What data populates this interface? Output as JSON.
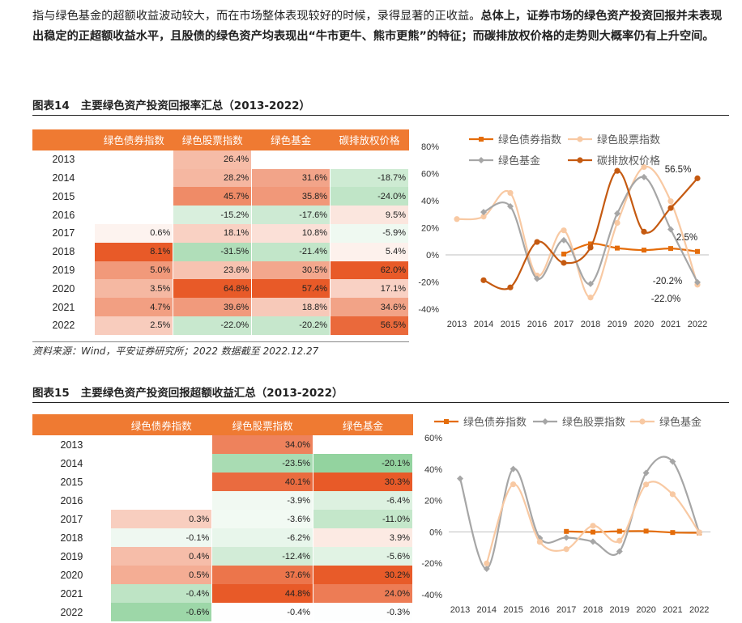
{
  "paragraph": {
    "normal": "指与绿色基金的超额收益波动较大，而在市场整体表现较好的时候，录得显著的正收益。",
    "bold": "总体上，证券市场的绿色资产投资回报并未表现出稳定的正超额收益水平，且股债的绿色资产均表现出“牛市更牛、熊市更熊”的特征；而碳排放权价格的走势则大概率仍有上升空间。"
  },
  "fig14": {
    "label": "图表14",
    "title": "主要绿色资产投资回报率汇总（2013-2022）",
    "headers": [
      "",
      "绿色债券指数",
      "绿色股票指数",
      "绿色基金",
      "碳排放权价格"
    ],
    "rows": [
      {
        "year": "2013",
        "cells": [
          "",
          "26.4%",
          "",
          ""
        ]
      },
      {
        "year": "2014",
        "cells": [
          "",
          "28.2%",
          "31.6%",
          "-18.7%"
        ]
      },
      {
        "year": "2015",
        "cells": [
          "",
          "45.7%",
          "35.8%",
          "-24.0%"
        ]
      },
      {
        "year": "2016",
        "cells": [
          "",
          "-15.2%",
          "-17.6%",
          "9.5%"
        ]
      },
      {
        "year": "2017",
        "cells": [
          "0.6%",
          "18.1%",
          "10.8%",
          "-5.9%"
        ]
      },
      {
        "year": "2018",
        "cells": [
          "8.1%",
          "-31.5%",
          "-21.4%",
          "5.4%"
        ]
      },
      {
        "year": "2019",
        "cells": [
          "5.0%",
          "23.6%",
          "30.5%",
          "62.0%"
        ]
      },
      {
        "year": "2020",
        "cells": [
          "3.5%",
          "64.8%",
          "57.4%",
          "17.1%"
        ]
      },
      {
        "year": "2021",
        "cells": [
          "4.7%",
          "39.6%",
          "18.8%",
          "34.6%"
        ]
      },
      {
        "year": "2022",
        "cells": [
          "2.5%",
          "-22.0%",
          "-20.2%",
          "56.5%"
        ]
      }
    ],
    "source": "资料来源：Wind，平安证券研究所；2022 数据截至 2022.12.27"
  },
  "fig15": {
    "label": "图表15",
    "title": "主要绿色资产投资回报超额收益汇总（2013-2022）",
    "headers": [
      "",
      "绿色债券指数",
      "绿色股票指数",
      "绿色基金"
    ],
    "rows": [
      {
        "year": "2013",
        "cells": [
          "",
          "34.0%",
          ""
        ]
      },
      {
        "year": "2014",
        "cells": [
          "",
          "-23.5%",
          "-20.1%"
        ]
      },
      {
        "year": "2015",
        "cells": [
          "",
          "40.1%",
          "30.3%"
        ]
      },
      {
        "year": "2016",
        "cells": [
          "",
          "-3.9%",
          "-6.4%"
        ]
      },
      {
        "year": "2017",
        "cells": [
          "0.3%",
          "-3.6%",
          "-11.0%"
        ]
      },
      {
        "year": "2018",
        "cells": [
          "-0.1%",
          "-6.2%",
          "3.9%"
        ]
      },
      {
        "year": "2019",
        "cells": [
          "0.4%",
          "-12.4%",
          "-5.6%"
        ]
      },
      {
        "year": "2020",
        "cells": [
          "0.5%",
          "37.6%",
          "30.2%"
        ]
      },
      {
        "year": "2021",
        "cells": [
          "-0.4%",
          "44.8%",
          "24.0%"
        ]
      },
      {
        "year": "2022",
        "cells": [
          "-0.6%",
          "-0.4%",
          "-0.3%"
        ]
      }
    ]
  },
  "colors": {
    "header": "#ef7a32",
    "bond": "#e46c0a",
    "stock": "#a6a6a6",
    "fund": "#f8c9a3",
    "carbon": "#c55a11"
  },
  "chart_data": [
    {
      "type": "line",
      "x": [
        "2013",
        "2014",
        "2015",
        "2016",
        "2017",
        "2018",
        "2019",
        "2020",
        "2021",
        "2022"
      ],
      "ylim": [
        -40,
        80
      ],
      "yticks": [
        "-40%",
        "-20%",
        "0%",
        "20%",
        "40%",
        "60%",
        "80%"
      ],
      "series": [
        {
          "name": "绿色债券指数",
          "values": [
            null,
            null,
            null,
            null,
            0.6,
            8.1,
            5.0,
            3.5,
            4.7,
            2.5
          ]
        },
        {
          "name": "绿色股票指数",
          "values": [
            26.4,
            28.2,
            45.7,
            -15.2,
            18.1,
            -31.5,
            23.6,
            64.8,
            39.6,
            -22.0
          ]
        },
        {
          "name": "绿色基金",
          "values": [
            null,
            31.6,
            35.8,
            -17.6,
            10.8,
            -21.4,
            30.5,
            57.4,
            18.8,
            -20.2
          ]
        },
        {
          "name": "碳排放权价格",
          "values": [
            null,
            -18.7,
            -24.0,
            9.5,
            -5.9,
            5.4,
            62.0,
            17.1,
            34.6,
            56.5
          ]
        }
      ],
      "data_labels": [
        "56.5%",
        "2.5%",
        "-20.2%",
        "-22.0%"
      ]
    },
    {
      "type": "line",
      "x": [
        "2013",
        "2014",
        "2015",
        "2016",
        "2017",
        "2018",
        "2019",
        "2020",
        "2021",
        "2022"
      ],
      "ylim": [
        -40,
        60
      ],
      "yticks": [
        "-40%",
        "-20%",
        "0%",
        "20%",
        "40%",
        "60%"
      ],
      "series": [
        {
          "name": "绿色债券指数",
          "values": [
            null,
            null,
            null,
            null,
            0.3,
            -0.1,
            0.4,
            0.5,
            -0.4,
            -0.6
          ]
        },
        {
          "name": "绿色股票指数",
          "values": [
            34.0,
            -23.5,
            40.1,
            -3.9,
            -3.6,
            -6.2,
            -12.4,
            37.6,
            44.8,
            -0.4
          ]
        },
        {
          "name": "绿色基金",
          "values": [
            null,
            -20.1,
            30.3,
            -6.4,
            -11.0,
            3.9,
            -5.6,
            30.2,
            24.0,
            -0.3
          ]
        }
      ]
    }
  ]
}
